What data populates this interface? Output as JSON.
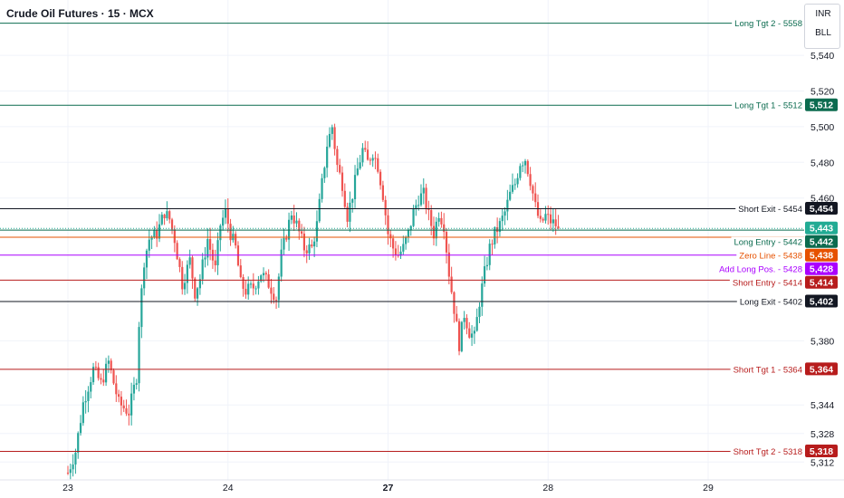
{
  "header": {
    "title": "Crude Oil Futures · 15 · MCX"
  },
  "controls": {
    "currency": "INR",
    "mode": "BLL"
  },
  "chart_data": {
    "type": "candlestick",
    "ylim": [
      5302,
      5571
    ],
    "y_ticks": [
      5540,
      5520,
      5500,
      5480,
      5460,
      5380,
      5344,
      5328,
      5312
    ],
    "x_ticks": [
      {
        "label": "23",
        "bar": 0,
        "bold": false
      },
      {
        "label": "24",
        "bar": 63,
        "bold": false
      },
      {
        "label": "27",
        "bar": 126,
        "bold": true
      },
      {
        "label": "28",
        "bar": 189,
        "bold": false
      },
      {
        "label": "29",
        "bar": 252,
        "bold": false
      }
    ],
    "last_price": {
      "value": 5443,
      "label": "5,443",
      "color": "#22ab94"
    },
    "levels": [
      {
        "name": "Long Tgt 2",
        "value": 5558,
        "label": "Long Tgt 2 - 5558",
        "price_label": "5,558",
        "color": "#0b6b4f",
        "text_color": "#0b6b4f"
      },
      {
        "name": "Long Tgt 1",
        "value": 5512,
        "label": "Long Tgt 1 - 5512",
        "price_label": "5,512",
        "color": "#0b6b4f",
        "text_color": "#0b6b4f"
      },
      {
        "name": "Short Exit",
        "value": 5454,
        "label": "Short Exit - 5454",
        "price_label": "5,454",
        "color": "#131722",
        "text_color": "#131722"
      },
      {
        "name": "Long Entry",
        "value": 5442,
        "label": "Long Entry - 5442",
        "price_label": "5,442",
        "color": "#0b6b4f",
        "text_color": "#0b6b4f"
      },
      {
        "name": "Zero Line",
        "value": 5438,
        "label": "Zero Line - 5438",
        "price_label": "5,438",
        "color": "#e65100",
        "text_color": "#e65100"
      },
      {
        "name": "Add Long Pos.",
        "value": 5428,
        "label": "Add Long Pos. - 5428",
        "price_label": "5,428",
        "color": "#aa00ff",
        "text_color": "#aa00ff"
      },
      {
        "name": "Short Entry",
        "value": 5414,
        "label": "Short Entry - 5414",
        "price_label": "5,414",
        "color": "#b71c1c",
        "text_color": "#b71c1c"
      },
      {
        "name": "Long Exit",
        "value": 5402,
        "label": "Long Exit - 5402",
        "price_label": "5,402",
        "color": "#131722",
        "text_color": "#131722"
      },
      {
        "name": "Short Tgt 1",
        "value": 5364,
        "label": "Short Tgt 1 - 5364",
        "price_label": "5,364",
        "color": "#b71c1c",
        "text_color": "#b71c1c"
      },
      {
        "name": "Short Tgt 2",
        "value": 5318,
        "label": "Short Tgt 2 - 5318",
        "price_label": "5,318",
        "color": "#b71c1c",
        "text_color": "#b71c1c"
      }
    ],
    "colors": {
      "up": "#26a69a",
      "down": "#ef5350",
      "grid": "#f0f3fa",
      "axis_text": "#131722"
    },
    "anchors": [
      [
        0,
        5306
      ],
      [
        3,
        5318
      ],
      [
        6,
        5345
      ],
      [
        10,
        5364
      ],
      [
        13,
        5356
      ],
      [
        16,
        5368
      ],
      [
        20,
        5345
      ],
      [
        24,
        5340
      ],
      [
        27,
        5360
      ],
      [
        28,
        5390
      ],
      [
        30,
        5425
      ],
      [
        32,
        5437
      ],
      [
        35,
        5440
      ],
      [
        38,
        5452
      ],
      [
        40,
        5448
      ],
      [
        42,
        5437
      ],
      [
        45,
        5412
      ],
      [
        48,
        5425
      ],
      [
        50,
        5407
      ],
      [
        52,
        5415
      ],
      [
        55,
        5437
      ],
      [
        58,
        5420
      ],
      [
        60,
        5445
      ],
      [
        62,
        5452
      ],
      [
        64,
        5440
      ],
      [
        66,
        5432
      ],
      [
        68,
        5412
      ],
      [
        70,
        5408
      ],
      [
        73,
        5410
      ],
      [
        76,
        5418
      ],
      [
        79,
        5412
      ],
      [
        82,
        5404
      ],
      [
        84,
        5428
      ],
      [
        86,
        5440
      ],
      [
        88,
        5452
      ],
      [
        90,
        5445
      ],
      [
        93,
        5432
      ],
      [
        96,
        5432
      ],
      [
        98,
        5445
      ],
      [
        100,
        5468
      ],
      [
        102,
        5490
      ],
      [
        104,
        5500
      ],
      [
        106,
        5478
      ],
      [
        108,
        5468
      ],
      [
        110,
        5450
      ],
      [
        112,
        5462
      ],
      [
        114,
        5476
      ],
      [
        116,
        5487
      ],
      [
        118,
        5480
      ],
      [
        120,
        5486
      ],
      [
        122,
        5478
      ],
      [
        124,
        5462
      ],
      [
        126,
        5440
      ],
      [
        128,
        5432
      ],
      [
        130,
        5428
      ],
      [
        132,
        5432
      ],
      [
        134,
        5440
      ],
      [
        136,
        5452
      ],
      [
        138,
        5460
      ],
      [
        140,
        5462
      ],
      [
        142,
        5450
      ],
      [
        144,
        5440
      ],
      [
        146,
        5452
      ],
      [
        148,
        5445
      ],
      [
        150,
        5418
      ],
      [
        152,
        5398
      ],
      [
        154,
        5378
      ],
      [
        156,
        5395
      ],
      [
        158,
        5385
      ],
      [
        160,
        5382
      ],
      [
        162,
        5402
      ],
      [
        164,
        5418
      ],
      [
        166,
        5432
      ],
      [
        168,
        5440
      ],
      [
        170,
        5445
      ],
      [
        172,
        5452
      ],
      [
        174,
        5462
      ],
      [
        176,
        5468
      ],
      [
        178,
        5480
      ],
      [
        180,
        5482
      ],
      [
        182,
        5470
      ],
      [
        184,
        5455
      ],
      [
        186,
        5445
      ],
      [
        188,
        5450
      ],
      [
        190,
        5447
      ],
      [
        192,
        5445
      ],
      [
        193,
        5443
      ]
    ]
  }
}
